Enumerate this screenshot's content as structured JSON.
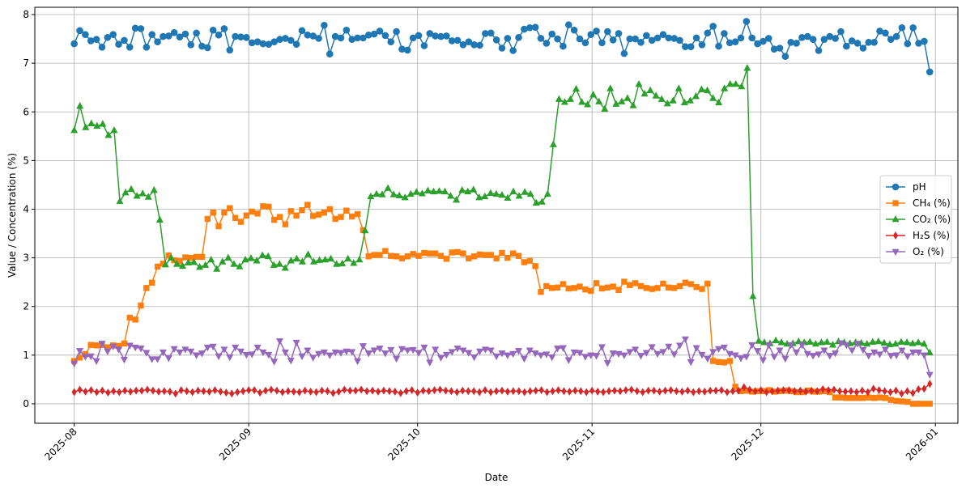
{
  "chart_data": {
    "type": "line",
    "title": "",
    "xlabel": "Date",
    "ylabel": "Value / Concentration (%)",
    "x_start": "2025-08-01",
    "x_end": "2025-12-31",
    "xlim": [
      "2025-07-25",
      "2026-01-05"
    ],
    "ylim": [
      -0.4,
      8.15
    ],
    "yticks": [
      0,
      1,
      2,
      3,
      4,
      5,
      6,
      7,
      8
    ],
    "xticks": [
      {
        "date": "2025-08-01",
        "label": "2025-08"
      },
      {
        "date": "2025-09-01",
        "label": "2025-09"
      },
      {
        "date": "2025-10-01",
        "label": "2025-10"
      },
      {
        "date": "2025-11-01",
        "label": "2025-11"
      },
      {
        "date": "2025-12-01",
        "label": "2025-12"
      },
      {
        "date": "2026-01-01",
        "label": "2026-01"
      }
    ],
    "grid": true,
    "legend_position": "center-right",
    "series": [
      {
        "name": "pH",
        "color": "#1f77b4",
        "marker": "circle",
        "values": [
          7.4,
          7.67,
          7.59,
          7.46,
          7.49,
          7.33,
          7.53,
          7.59,
          7.39,
          7.47,
          7.33,
          7.72,
          7.71,
          7.33,
          7.59,
          7.44,
          7.55,
          7.56,
          7.63,
          7.54,
          7.6,
          7.38,
          7.62,
          7.35,
          7.32,
          7.68,
          7.58,
          7.71,
          7.27,
          7.55,
          7.54,
          7.53,
          7.42,
          7.44,
          7.4,
          7.39,
          7.44,
          7.49,
          7.51,
          7.47,
          7.39,
          7.67,
          7.58,
          7.56,
          7.51,
          7.78,
          7.19,
          7.55,
          7.52,
          7.68,
          7.49,
          7.52,
          7.52,
          7.58,
          7.6,
          7.66,
          7.57,
          7.44,
          7.65,
          7.29,
          7.27,
          7.52,
          7.57,
          7.36,
          7.61,
          7.56,
          7.55,
          7.56,
          7.46,
          7.47,
          7.38,
          7.44,
          7.38,
          7.37,
          7.61,
          7.62,
          7.48,
          7.31,
          7.51,
          7.26,
          7.53,
          7.7,
          7.73,
          7.74,
          7.51,
          7.41,
          7.6,
          7.5,
          7.35,
          7.79,
          7.68,
          7.5,
          7.42,
          7.59,
          7.66,
          7.42,
          7.65,
          7.48,
          7.61,
          7.2,
          7.5,
          7.5,
          7.43,
          7.57,
          7.47,
          7.52,
          7.59,
          7.52,
          7.51,
          7.47,
          7.34,
          7.34,
          7.52,
          7.38,
          7.62,
          7.76,
          7.35,
          7.61,
          7.42,
          7.44,
          7.52,
          7.86,
          7.52,
          7.4,
          7.45,
          7.51,
          7.29,
          7.31,
          7.14,
          7.43,
          7.41,
          7.53,
          7.55,
          7.49,
          7.26,
          7.49,
          7.55,
          7.51,
          7.65,
          7.35,
          7.46,
          7.41,
          7.31,
          7.43,
          7.43,
          7.66,
          7.62,
          7.49,
          7.55,
          7.73,
          7.4,
          7.73,
          7.41,
          7.45,
          6.82
        ]
      },
      {
        "name": "CH₄ (%)",
        "color": "#ff7f0e",
        "marker": "square",
        "values": [
          0.88,
          0.95,
          1.02,
          1.21,
          1.2,
          1.21,
          1.16,
          1.2,
          1.19,
          1.24,
          1.77,
          1.73,
          2.02,
          2.38,
          2.49,
          2.82,
          2.88,
          3.05,
          2.95,
          2.93,
          3.01,
          3.0,
          3.02,
          3.02,
          3.8,
          3.93,
          3.65,
          3.93,
          4.02,
          3.82,
          3.74,
          3.87,
          3.95,
          3.91,
          4.06,
          4.05,
          3.78,
          3.84,
          3.69,
          3.96,
          3.87,
          3.98,
          4.09,
          3.86,
          3.89,
          3.93,
          4.0,
          3.8,
          3.84,
          3.97,
          3.85,
          3.9,
          3.57,
          3.03,
          3.06,
          3.06,
          3.14,
          3.04,
          3.03,
          2.99,
          3.03,
          3.08,
          3.04,
          3.1,
          3.09,
          3.09,
          3.04,
          2.98,
          3.11,
          3.12,
          3.09,
          2.99,
          3.03,
          3.07,
          3.06,
          3.06,
          2.99,
          3.1,
          3.0,
          3.09,
          3.04,
          2.91,
          2.94,
          2.83,
          2.3,
          2.42,
          2.38,
          2.39,
          2.46,
          2.37,
          2.38,
          2.41,
          2.35,
          2.32,
          2.48,
          2.37,
          2.39,
          2.41,
          2.34,
          2.51,
          2.44,
          2.48,
          2.42,
          2.38,
          2.36,
          2.38,
          2.47,
          2.39,
          2.38,
          2.42,
          2.49,
          2.46,
          2.4,
          2.36,
          2.47,
          0.88,
          0.86,
          0.85,
          0.88,
          0.35,
          0.26,
          0.27,
          0.25,
          0.26,
          0.26,
          0.28,
          0.25,
          0.26,
          0.27,
          0.26,
          0.24,
          0.24,
          0.27,
          0.25,
          0.25,
          0.26,
          0.24,
          0.13,
          0.13,
          0.12,
          0.12,
          0.12,
          0.12,
          0.13,
          0.12,
          0.13,
          0.12,
          0.08,
          0.06,
          0.05,
          0.04,
          0.0,
          0.0,
          0.0,
          0.0
        ]
      },
      {
        "name": "CO₂ (%)",
        "color": "#2ca02c",
        "marker": "triangle-up",
        "values": [
          5.62,
          6.12,
          5.68,
          5.76,
          5.71,
          5.75,
          5.52,
          5.62,
          4.16,
          4.34,
          4.41,
          4.27,
          4.32,
          4.25,
          4.39,
          3.78,
          2.86,
          3.0,
          2.87,
          2.83,
          2.9,
          2.91,
          2.81,
          2.85,
          2.96,
          2.77,
          2.92,
          3.0,
          2.87,
          2.82,
          2.96,
          2.99,
          2.94,
          3.05,
          3.03,
          2.85,
          2.87,
          2.79,
          2.94,
          2.98,
          2.92,
          3.07,
          2.92,
          2.95,
          2.96,
          2.98,
          2.87,
          2.88,
          2.98,
          2.89,
          2.96,
          3.56,
          4.26,
          4.31,
          4.3,
          4.43,
          4.3,
          4.28,
          4.24,
          4.31,
          4.35,
          4.32,
          4.38,
          4.36,
          4.37,
          4.36,
          4.27,
          4.19,
          4.39,
          4.36,
          4.4,
          4.24,
          4.26,
          4.33,
          4.31,
          4.29,
          4.23,
          4.36,
          4.27,
          4.35,
          4.31,
          4.13,
          4.15,
          4.31,
          5.33,
          6.26,
          6.2,
          6.26,
          6.47,
          6.2,
          6.15,
          6.35,
          6.21,
          6.06,
          6.48,
          6.16,
          6.21,
          6.28,
          6.13,
          6.57,
          6.37,
          6.44,
          6.33,
          6.26,
          6.17,
          6.23,
          6.48,
          6.19,
          6.23,
          6.32,
          6.46,
          6.44,
          6.28,
          6.19,
          6.48,
          6.57,
          6.57,
          6.52,
          6.9,
          2.21,
          1.29,
          1.26,
          1.24,
          1.3,
          1.26,
          1.23,
          1.24,
          1.28,
          1.26,
          1.27,
          1.23,
          1.26,
          1.27,
          1.21,
          1.28,
          1.26,
          1.24,
          1.26,
          1.25,
          1.23,
          1.27,
          1.28,
          1.25,
          1.22,
          1.23,
          1.27,
          1.26,
          1.24,
          1.26,
          1.23,
          1.05
        ]
      },
      {
        "name": "H₂S (%)",
        "color": "#d62728",
        "marker": "diamond",
        "values": [
          0.24,
          0.29,
          0.25,
          0.28,
          0.24,
          0.27,
          0.23,
          0.26,
          0.24,
          0.27,
          0.25,
          0.27,
          0.27,
          0.29,
          0.27,
          0.25,
          0.26,
          0.25,
          0.21,
          0.28,
          0.26,
          0.24,
          0.27,
          0.26,
          0.25,
          0.28,
          0.25,
          0.23,
          0.21,
          0.24,
          0.26,
          0.28,
          0.28,
          0.23,
          0.27,
          0.29,
          0.27,
          0.24,
          0.26,
          0.25,
          0.24,
          0.27,
          0.25,
          0.24,
          0.27,
          0.26,
          0.22,
          0.25,
          0.29,
          0.27,
          0.27,
          0.29,
          0.26,
          0.27,
          0.25,
          0.27,
          0.26,
          0.25,
          0.22,
          0.26,
          0.28,
          0.23,
          0.27,
          0.26,
          0.28,
          0.29,
          0.27,
          0.26,
          0.24,
          0.27,
          0.26,
          0.26,
          0.24,
          0.28,
          0.24,
          0.26,
          0.27,
          0.25,
          0.26,
          0.26,
          0.24,
          0.26,
          0.27,
          0.28,
          0.24,
          0.26,
          0.28,
          0.26,
          0.25,
          0.27,
          0.26,
          0.24,
          0.27,
          0.25,
          0.24,
          0.26,
          0.27,
          0.26,
          0.28,
          0.29,
          0.26,
          0.24,
          0.27,
          0.27,
          0.25,
          0.27,
          0.28,
          0.26,
          0.25,
          0.27,
          0.24,
          0.26,
          0.25,
          0.27,
          0.27,
          0.28,
          0.24,
          0.26,
          0.27,
          0.34,
          0.29,
          0.26,
          0.28,
          0.24,
          0.26,
          0.27,
          0.28,
          0.28,
          0.26,
          0.27,
          0.25,
          0.27,
          0.26,
          0.3,
          0.28,
          0.29,
          0.26,
          0.25,
          0.26,
          0.24,
          0.27,
          0.24,
          0.31,
          0.28,
          0.26,
          0.24,
          0.27,
          0.21,
          0.26,
          0.22,
          0.3,
          0.31,
          0.41
        ]
      },
      {
        "name": "O₂ (%)",
        "color": "#9467bd",
        "marker": "triangle-down",
        "values": [
          0.83,
          1.09,
          0.97,
          0.98,
          0.88,
          1.24,
          1.08,
          1.18,
          1.12,
          0.91,
          1.2,
          1.16,
          1.14,
          1.05,
          0.92,
          0.92,
          1.06,
          0.94,
          1.13,
          1.06,
          1.12,
          1.08,
          1.0,
          1.04,
          1.16,
          1.18,
          0.98,
          1.12,
          0.96,
          1.16,
          1.08,
          1.01,
          1.02,
          1.16,
          1.06,
          1.01,
          0.87,
          1.29,
          1.06,
          0.89,
          1.26,
          0.98,
          1.1,
          0.95,
          1.03,
          1.06,
          1.0,
          1.06,
          1.05,
          1.08,
          1.07,
          0.88,
          1.19,
          1.04,
          1.1,
          1.14,
          1.04,
          1.11,
          0.93,
          1.13,
          1.1,
          1.11,
          1.05,
          1.16,
          0.85,
          1.12,
          0.95,
          1.01,
          1.07,
          1.14,
          1.1,
          1.05,
          0.96,
          1.08,
          1.12,
          1.1,
          0.98,
          1.04,
          1.0,
          1.03,
          1.09,
          0.93,
          1.1,
          1.04,
          1.0,
          1.02,
          0.96,
          1.14,
          1.15,
          0.9,
          1.06,
          1.05,
          0.97,
          1.0,
          0.99,
          1.17,
          0.84,
          1.04,
          1.03,
          1.0,
          1.07,
          1.12,
          0.99,
          1.05,
          1.17,
          1.03,
          1.07,
          1.18,
          1.02,
          1.2,
          1.33,
          0.86,
          1.15,
          1.01,
          0.93,
          1.07,
          1.13,
          1.16,
          1.03,
          1.0,
          0.94,
          0.97,
          1.21,
          1.09,
          0.9,
          1.21,
          0.97,
          1.1,
          0.93,
          1.21,
          1.06,
          1.21,
          1.03,
          0.99,
          1.02,
          1.1,
          0.99,
          1.04,
          1.25,
          1.21,
          1.1,
          1.24,
          1.11,
          0.99,
          1.06,
          1.02,
          1.12,
          0.99,
          1.0,
          1.1,
          0.98,
          1.06,
          1.06,
          1.0,
          0.6
        ]
      }
    ]
  }
}
